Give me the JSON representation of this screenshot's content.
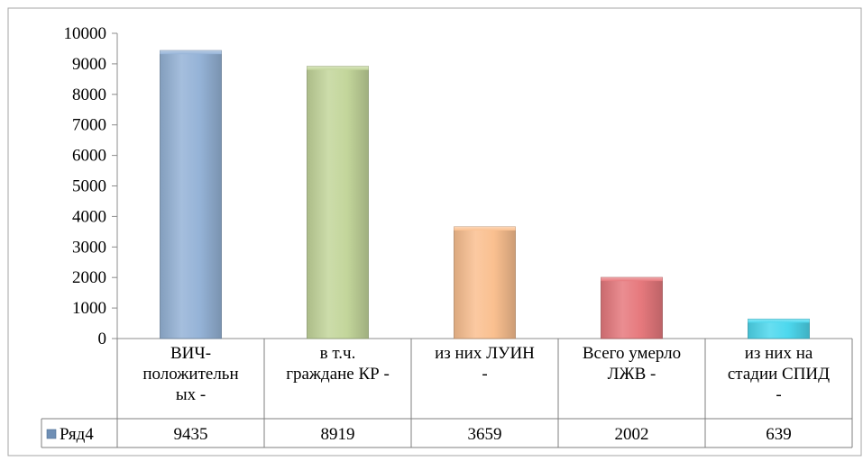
{
  "chart_data": {
    "type": "bar",
    "categories": [
      [
        "ВИЧ-",
        "положительн",
        "ых -"
      ],
      [
        "в т.ч.",
        "граждане КР -"
      ],
      [
        "из них ЛУИН",
        "-"
      ],
      [
        "Всего умерло",
        "ЛЖВ -"
      ],
      [
        "из них на",
        "стадии СПИД",
        "-"
      ]
    ],
    "series": [
      {
        "name": "Ряд4",
        "values": [
          9435,
          8919,
          3659,
          2002,
          639
        ]
      }
    ],
    "bar_colors": [
      "#95b3d7",
      "#c3d69b",
      "#fac090",
      "#e6797d",
      "#4dd8ee"
    ],
    "ylim": [
      0,
      10000
    ],
    "yticks": [
      0,
      1000,
      2000,
      3000,
      4000,
      5000,
      6000,
      7000,
      8000,
      9000,
      10000
    ],
    "grid": false,
    "legend": "data-table-row-header",
    "data_table": true
  }
}
